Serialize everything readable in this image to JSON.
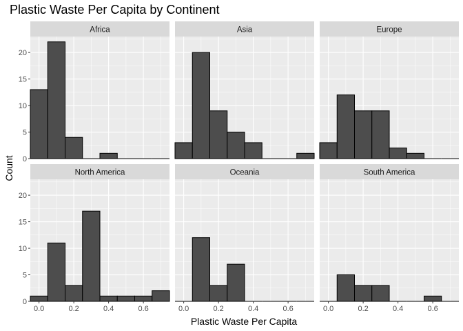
{
  "chart_data": {
    "type": "bar",
    "subtype": "faceted-histogram",
    "title": "Plastic Waste Per Capita by Continent",
    "xlabel": "Plastic Waste Per Capita",
    "ylabel": "Count",
    "bin_width": 0.1,
    "bin_centers": [
      0.0,
      0.1,
      0.2,
      0.3,
      0.4,
      0.5,
      0.6,
      0.7
    ],
    "xlim": [
      -0.05,
      0.75
    ],
    "ylim": [
      0,
      23
    ],
    "x_ticks": [
      0.0,
      0.2,
      0.4,
      0.6
    ],
    "x_tick_labels": [
      "0.0",
      "0.2",
      "0.4",
      "0.6"
    ],
    "y_ticks": [
      0,
      5,
      10,
      15,
      20
    ],
    "y_tick_labels": [
      "0",
      "5",
      "10",
      "15",
      "20"
    ],
    "bar_fill": "#4d4d4d",
    "bar_outline": "#000000",
    "panel_background": "#ebebeb",
    "strip_background": "#d9d9d9",
    "grid": true,
    "facets": [
      {
        "name": "Africa",
        "counts": [
          13,
          22,
          4,
          0,
          1,
          0,
          0,
          0
        ]
      },
      {
        "name": "Asia",
        "counts": [
          3,
          20,
          9,
          5,
          3,
          0,
          0,
          1
        ]
      },
      {
        "name": "Europe",
        "counts": [
          3,
          12,
          9,
          9,
          2,
          1,
          0,
          0
        ]
      },
      {
        "name": "North America",
        "counts": [
          1,
          11,
          3,
          17,
          1,
          1,
          1,
          2
        ]
      },
      {
        "name": "Oceania",
        "counts": [
          0,
          12,
          3,
          7,
          0,
          0,
          0,
          0
        ]
      },
      {
        "name": "South America",
        "counts": [
          0,
          5,
          3,
          3,
          0,
          0,
          1,
          0
        ]
      }
    ]
  }
}
